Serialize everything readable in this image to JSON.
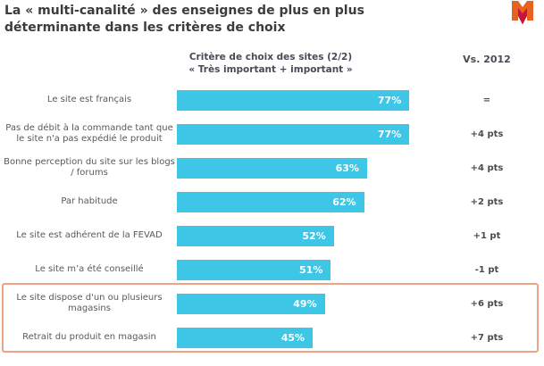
{
  "page": {
    "title_line1": "La « multi-canalité » des enseignes de plus en plus",
    "title_line2": "déterminante dans les critères de choix",
    "logo_name": "mediametrie-m-logo",
    "logo_colors": {
      "m": "#e8611f",
      "arrow": "#c2173a"
    }
  },
  "chart_data": {
    "type": "bar",
    "orientation": "horizontal",
    "title": "Critère de choix des sites (2/2)",
    "subtitle": "« Très important + important »",
    "vs_header": "Vs. 2012",
    "xlim": [
      0,
      100
    ],
    "unit": "%",
    "bar_color": "#3ec6e6",
    "value_text_color": "#ffffff",
    "highlight_border_color": "#f0a285",
    "highlight_rows": [
      6,
      7
    ],
    "rows": [
      {
        "label": "Le site est français",
        "value": 77,
        "value_label": "77%",
        "vs_2012": "="
      },
      {
        "label": "Pas de débit à la commande  tant que le site n'a pas expédié le produit",
        "value": 77,
        "value_label": "77%",
        "vs_2012": "+4 pts"
      },
      {
        "label": "Bonne perception du site sur les blogs / forums",
        "value": 63,
        "value_label": "63%",
        "vs_2012": "+4 pts"
      },
      {
        "label": "Par habitude",
        "value": 62,
        "value_label": "62%",
        "vs_2012": "+2 pts"
      },
      {
        "label": "Le site est adhérent de la FEVAD",
        "value": 52,
        "value_label": "52%",
        "vs_2012": "+1 pt"
      },
      {
        "label": "Le site m’a été conseillé",
        "value": 51,
        "value_label": "51%",
        "vs_2012": "-1 pt"
      },
      {
        "label": "Le site dispose d'un ou plusieurs magasins",
        "value": 49,
        "value_label": "49%",
        "vs_2012": "+6 pts"
      },
      {
        "label": "Retrait du produit en magasin",
        "value": 45,
        "value_label": "45%",
        "vs_2012": "+7 pts"
      }
    ]
  }
}
